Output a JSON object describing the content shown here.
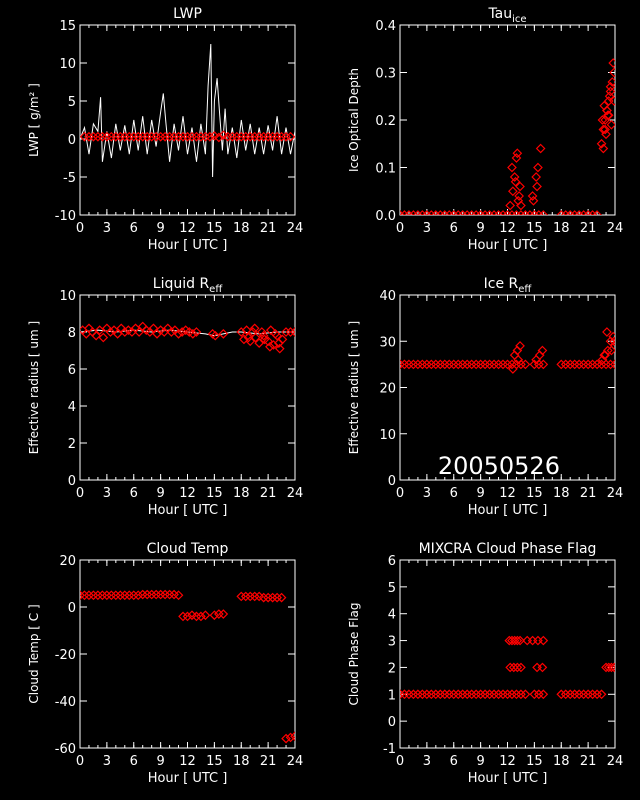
{
  "figure": {
    "date_label": "20050526"
  },
  "colors": {
    "background": "#000000",
    "axes": "#ffffff",
    "markers": "#ff0000",
    "line": "#ffffff"
  },
  "chart_data": [
    {
      "id": "lwp",
      "type": "line",
      "title": "LWP",
      "xlabel": "Hour [ UTC ]",
      "ylabel": "LWP [ g/m² ]",
      "xlim": [
        0,
        24
      ],
      "ylim": [
        -10,
        15
      ],
      "xticks": [
        0,
        3,
        6,
        9,
        12,
        15,
        18,
        21,
        24
      ],
      "yticks": [
        -10,
        -5,
        0,
        5,
        10,
        15
      ],
      "series": [
        {
          "style": "line",
          "note_color": "white",
          "x": [
            0,
            0.5,
            1,
            1.5,
            2,
            2.3,
            2.5,
            3,
            3.5,
            4,
            4.5,
            5,
            5.5,
            6,
            6.5,
            7,
            7.5,
            8,
            8.5,
            9,
            9.3,
            9.6,
            10,
            10.5,
            11,
            11.5,
            12,
            12.5,
            13,
            13.5,
            14,
            14.3,
            14.6,
            14.8,
            15,
            15.3,
            15.6,
            15.9,
            16.2,
            16.5,
            17,
            17.5,
            18,
            18.5,
            19,
            19.5,
            20,
            20.5,
            21,
            21.5,
            22,
            22.5,
            23,
            23.5,
            24
          ],
          "y": [
            0,
            1.5,
            -2,
            2,
            1,
            5.5,
            -3,
            1,
            -2.5,
            2,
            -1.5,
            1.8,
            -2,
            2.5,
            -1.5,
            3,
            -2,
            2.5,
            -1,
            3.5,
            6,
            2,
            -3,
            2,
            -1.5,
            3,
            -2,
            1.5,
            -3,
            2,
            -2,
            7,
            12.5,
            -5,
            5,
            8,
            3,
            -1.5,
            4,
            -2,
            1.5,
            -2.5,
            2.5,
            -1.5,
            2,
            -2,
            1.5,
            -2,
            1.8,
            -1.5,
            3,
            -2,
            1.5,
            -2,
            1
          ]
        },
        {
          "style": "markers",
          "marker": "diamond",
          "x": [
            0.5,
            1,
            1.5,
            2,
            2.5,
            3,
            3.5,
            4,
            4.5,
            5,
            5.5,
            6,
            6.5,
            7,
            7.5,
            8,
            8.5,
            9,
            9.5,
            10,
            10.5,
            11,
            11.5,
            12,
            12.5,
            13,
            13.5,
            14,
            14.5,
            15,
            15.5,
            16,
            16.5,
            17,
            17.5,
            18,
            18.5,
            19,
            19.5,
            20,
            20.5,
            21,
            21.5,
            22,
            22.5,
            23,
            23.5
          ],
          "y": [
            0.3,
            0.3,
            0.3,
            0.3,
            0.3,
            0.3,
            0.3,
            0.3,
            0.3,
            0.3,
            0.3,
            0.3,
            0.3,
            0.3,
            0.3,
            0.3,
            0.3,
            0.3,
            0.3,
            0.3,
            0.3,
            0.3,
            0.3,
            0.3,
            0.3,
            0.3,
            0.3,
            0.3,
            0.3,
            0.4,
            0.2,
            0.5,
            0.3,
            0.3,
            0.3,
            0.3,
            0.3,
            0.3,
            0.3,
            0.3,
            0.3,
            0.3,
            0.3,
            0.3,
            0.3,
            0.3,
            0.3
          ]
        }
      ]
    },
    {
      "id": "tau_ice",
      "type": "scatter",
      "title": "Tau",
      "title_sub": "ice",
      "xlabel": "Hour [ UTC ]",
      "ylabel": "Ice Optical Depth",
      "xlim": [
        0,
        24
      ],
      "ylim": [
        0,
        0.4
      ],
      "xticks": [
        0,
        3,
        6,
        9,
        12,
        15,
        18,
        21,
        24
      ],
      "yticks": [
        "0.0",
        "0.1",
        "0.2",
        "0.3",
        "0.4"
      ],
      "series": [
        {
          "style": "markers",
          "marker": "diamond",
          "x": [
            0,
            0.5,
            1,
            1.5,
            2,
            2.5,
            3,
            3.5,
            4,
            4.5,
            5,
            5.5,
            6,
            6.5,
            7,
            7.5,
            8,
            8.5,
            9,
            9.5,
            10,
            10.5,
            11,
            11.5,
            12,
            12.5,
            13,
            13.5,
            14,
            14.5,
            15,
            15.5,
            16,
            18,
            18.5,
            19,
            19.5,
            20,
            20.5,
            21,
            21.5,
            22,
            12.3,
            12.6,
            12.8,
            13,
            13.2,
            13.4,
            12.5,
            13.1,
            13.3,
            12.9,
            13.5,
            14.8,
            15.2,
            15.4,
            15.7,
            14.9,
            15.3,
            22.5,
            22.7,
            22.9,
            23.1,
            23.3,
            23.5,
            23.7,
            23.9,
            22.6,
            22.8,
            23.0,
            23.2,
            23.4,
            23.6,
            23.8,
            22.7,
            23.1,
            23.5,
            23.9,
            22.9,
            23.3
          ],
          "y": [
            0,
            0,
            0,
            0,
            0,
            0,
            0,
            0,
            0,
            0,
            0,
            0,
            0,
            0,
            0,
            0,
            0,
            0,
            0,
            0,
            0,
            0,
            0,
            0,
            0,
            0,
            0,
            0,
            0,
            0,
            0,
            0,
            0,
            0,
            0,
            0,
            0,
            0,
            0,
            0,
            0,
            0,
            0.02,
            0.05,
            0.08,
            0.12,
            0.03,
            0.06,
            0.1,
            0.13,
            0.04,
            0.07,
            0.02,
            0.04,
            0.08,
            0.1,
            0.14,
            0.03,
            0.06,
            0.15,
            0.18,
            0.2,
            0.22,
            0.24,
            0.26,
            0.28,
            0.3,
            0.2,
            0.23,
            0.17,
            0.21,
            0.25,
            0.19,
            0.32,
            0.14,
            0.22,
            0.27,
            0.24,
            0.18,
            0.21
          ]
        }
      ]
    },
    {
      "id": "liquid_reff",
      "type": "scatter",
      "title": "Liquid R",
      "title_sub": "eff",
      "xlabel": "Hour [ UTC ]",
      "ylabel": "Effective radius [ um ]",
      "xlim": [
        0,
        24
      ],
      "ylim": [
        0,
        10
      ],
      "xticks": [
        0,
        3,
        6,
        9,
        12,
        15,
        18,
        21,
        24
      ],
      "yticks": [
        0,
        2,
        4,
        6,
        8,
        10
      ],
      "series": [
        {
          "style": "line",
          "note_color": "white",
          "x": [
            0,
            2,
            4,
            6,
            8,
            10,
            12,
            14,
            15,
            16,
            17,
            18,
            20,
            22,
            24
          ],
          "y": [
            8,
            8.1,
            8,
            8.1,
            8,
            8.1,
            8,
            7.9,
            7.8,
            7.9,
            8,
            8,
            7.9,
            8,
            8
          ]
        },
        {
          "style": "markers",
          "marker": "diamond",
          "x": [
            0.3,
            0.7,
            1,
            1.4,
            1.8,
            2.2,
            2.6,
            3,
            3.4,
            3.8,
            4.2,
            4.6,
            5,
            5.4,
            5.8,
            6.2,
            6.6,
            7,
            7.4,
            7.8,
            8.2,
            8.6,
            9,
            9.4,
            9.8,
            10.2,
            10.6,
            11,
            11.4,
            11.8,
            12.2,
            12.6,
            13,
            14.8,
            15.1,
            16,
            18,
            18.3,
            18.6,
            19,
            19.3,
            19.6,
            20,
            20.3,
            20.6,
            21,
            21.3,
            21.6,
            22,
            22.3,
            22.6,
            23,
            23.5,
            24,
            19.5,
            20.5,
            21.2,
            21.8,
            18.8,
            22.2
          ],
          "y": [
            8.1,
            7.9,
            8.2,
            8,
            7.8,
            8.1,
            7.7,
            8.2,
            8,
            8.1,
            7.9,
            8.2,
            8,
            8.1,
            8,
            8.2,
            8,
            8.3,
            8.1,
            8,
            8.2,
            7.9,
            8.1,
            8,
            8.2,
            8,
            8.1,
            7.9,
            8,
            8.1,
            8,
            7.9,
            8,
            7.9,
            7.8,
            7.9,
            8,
            7.6,
            8.1,
            7.5,
            8,
            7.7,
            7.4,
            8,
            7.6,
            7.5,
            8.1,
            7.3,
            7.8,
            7.1,
            7.6,
            8,
            8,
            8,
            8.2,
            7.8,
            7.2,
            7.9,
            7.7,
            7.4
          ]
        }
      ]
    },
    {
      "id": "ice_reff",
      "type": "scatter",
      "title": "Ice R",
      "title_sub": "eff",
      "xlabel": "Hour [ UTC ]",
      "ylabel": "Effective radius [ um ]",
      "xlim": [
        0,
        24
      ],
      "ylim": [
        0,
        40
      ],
      "xticks": [
        0,
        3,
        6,
        9,
        12,
        15,
        18,
        21,
        24
      ],
      "yticks": [
        0,
        10,
        20,
        30,
        40
      ],
      "annotation": "20050526",
      "series": [
        {
          "style": "markers",
          "marker": "diamond",
          "x": [
            0,
            0.5,
            1,
            1.5,
            2,
            2.5,
            3,
            3.5,
            4,
            4.5,
            5,
            5.5,
            6,
            6.5,
            7,
            7.5,
            8,
            8.5,
            9,
            9.5,
            10,
            10.5,
            11,
            11.5,
            12,
            12.5,
            13,
            13.5,
            14,
            15,
            15.5,
            16,
            18,
            18.5,
            19,
            19.5,
            20,
            20.5,
            21,
            21.5,
            22,
            22.5,
            23,
            23.5,
            24,
            12.8,
            13.1,
            13.4,
            12.6,
            13.2,
            15.2,
            15.6,
            15.9,
            22.6,
            22.9,
            23.2,
            23.5,
            23.8,
            24,
            23.1,
            23.6,
            23.9,
            22.8
          ],
          "y": [
            25,
            25,
            25,
            25,
            25,
            25,
            25,
            25,
            25,
            25,
            25,
            25,
            25,
            25,
            25,
            25,
            25,
            25,
            25,
            25,
            25,
            25,
            25,
            25,
            25,
            25,
            25,
            25,
            25,
            25,
            25,
            25,
            25,
            25,
            25,
            25,
            25,
            25,
            25,
            25,
            25,
            25,
            25,
            25,
            25,
            27,
            28,
            29,
            24,
            26,
            26,
            27,
            28,
            26,
            27,
            28,
            30,
            31,
            29,
            32,
            28,
            30,
            27
          ]
        }
      ]
    },
    {
      "id": "cloud_temp",
      "type": "scatter",
      "title": "Cloud Temp",
      "xlabel": "Hour [ UTC ]",
      "ylabel": "Cloud Temp [ C ]",
      "xlim": [
        0,
        24
      ],
      "ylim": [
        -60,
        20
      ],
      "xticks": [
        0,
        3,
        6,
        9,
        12,
        15,
        18,
        21,
        24
      ],
      "yticks": [
        -60,
        -40,
        -20,
        0,
        20
      ],
      "series": [
        {
          "style": "markers",
          "marker": "diamond",
          "x": [
            0,
            0.5,
            1,
            1.5,
            2,
            2.5,
            3,
            3.5,
            4,
            4.5,
            5,
            5.5,
            6,
            6.5,
            7,
            7.5,
            8,
            8.5,
            9,
            9.5,
            10,
            10.5,
            11,
            11.5,
            12,
            12.5,
            13,
            13.5,
            14,
            15,
            15.5,
            16,
            18,
            18.5,
            19,
            19.5,
            20,
            20.5,
            21,
            21.5,
            22,
            22.5,
            23,
            23.5,
            24
          ],
          "y": [
            5,
            5,
            5,
            5,
            5,
            5,
            5,
            5,
            5,
            5,
            5,
            5,
            5,
            5,
            5.3,
            5.3,
            5.3,
            5.3,
            5.3,
            5.3,
            5.3,
            5.3,
            5,
            -4,
            -4,
            -3.5,
            -4,
            -4,
            -3.5,
            -3.5,
            -3,
            -3,
            4.5,
            4.5,
            4.5,
            4.5,
            4.5,
            4,
            4,
            4,
            4,
            4,
            -56,
            -55.5,
            -55
          ]
        }
      ]
    },
    {
      "id": "phase_flag",
      "type": "scatter",
      "title": "MIXCRA Cloud Phase Flag",
      "xlabel": "Hour [ UTC ]",
      "ylabel": "Cloud Phase Flag",
      "xlim": [
        0,
        24
      ],
      "ylim": [
        -1,
        6
      ],
      "xticks": [
        0,
        3,
        6,
        9,
        12,
        15,
        18,
        21,
        24
      ],
      "yticks": [
        -1,
        0,
        1,
        2,
        3,
        4,
        5,
        6
      ],
      "series": [
        {
          "style": "markers",
          "marker": "diamond",
          "x": [
            0,
            0.5,
            1,
            1.5,
            2,
            2.5,
            3,
            3.5,
            4,
            4.5,
            5,
            5.5,
            6,
            6.5,
            7,
            7.5,
            8,
            8.5,
            9,
            9.5,
            10,
            10.5,
            11,
            11.5,
            12,
            12.5,
            13,
            13.5,
            14,
            15,
            15.5,
            16,
            18,
            18.5,
            19,
            19.5,
            20,
            20.5,
            21,
            21.5,
            22,
            22.5,
            12.2,
            12.5,
            12.8,
            13.1,
            13.4,
            14.2,
            14.8,
            15.4,
            16,
            12.3,
            12.7,
            13.1,
            13.5,
            15.3,
            15.9,
            23,
            23.3,
            23.6,
            23.9
          ],
          "y": [
            1,
            1,
            1,
            1,
            1,
            1,
            1,
            1,
            1,
            1,
            1,
            1,
            1,
            1,
            1,
            1,
            1,
            1,
            1,
            1,
            1,
            1,
            1,
            1,
            1,
            1,
            1,
            1,
            1,
            1,
            1,
            1,
            1,
            1,
            1,
            1,
            1,
            1,
            1,
            1,
            1,
            1,
            3,
            3,
            3,
            3,
            3,
            3,
            3,
            3,
            3,
            2,
            2,
            2,
            2,
            2,
            2,
            2,
            2,
            2,
            2
          ]
        }
      ]
    }
  ]
}
